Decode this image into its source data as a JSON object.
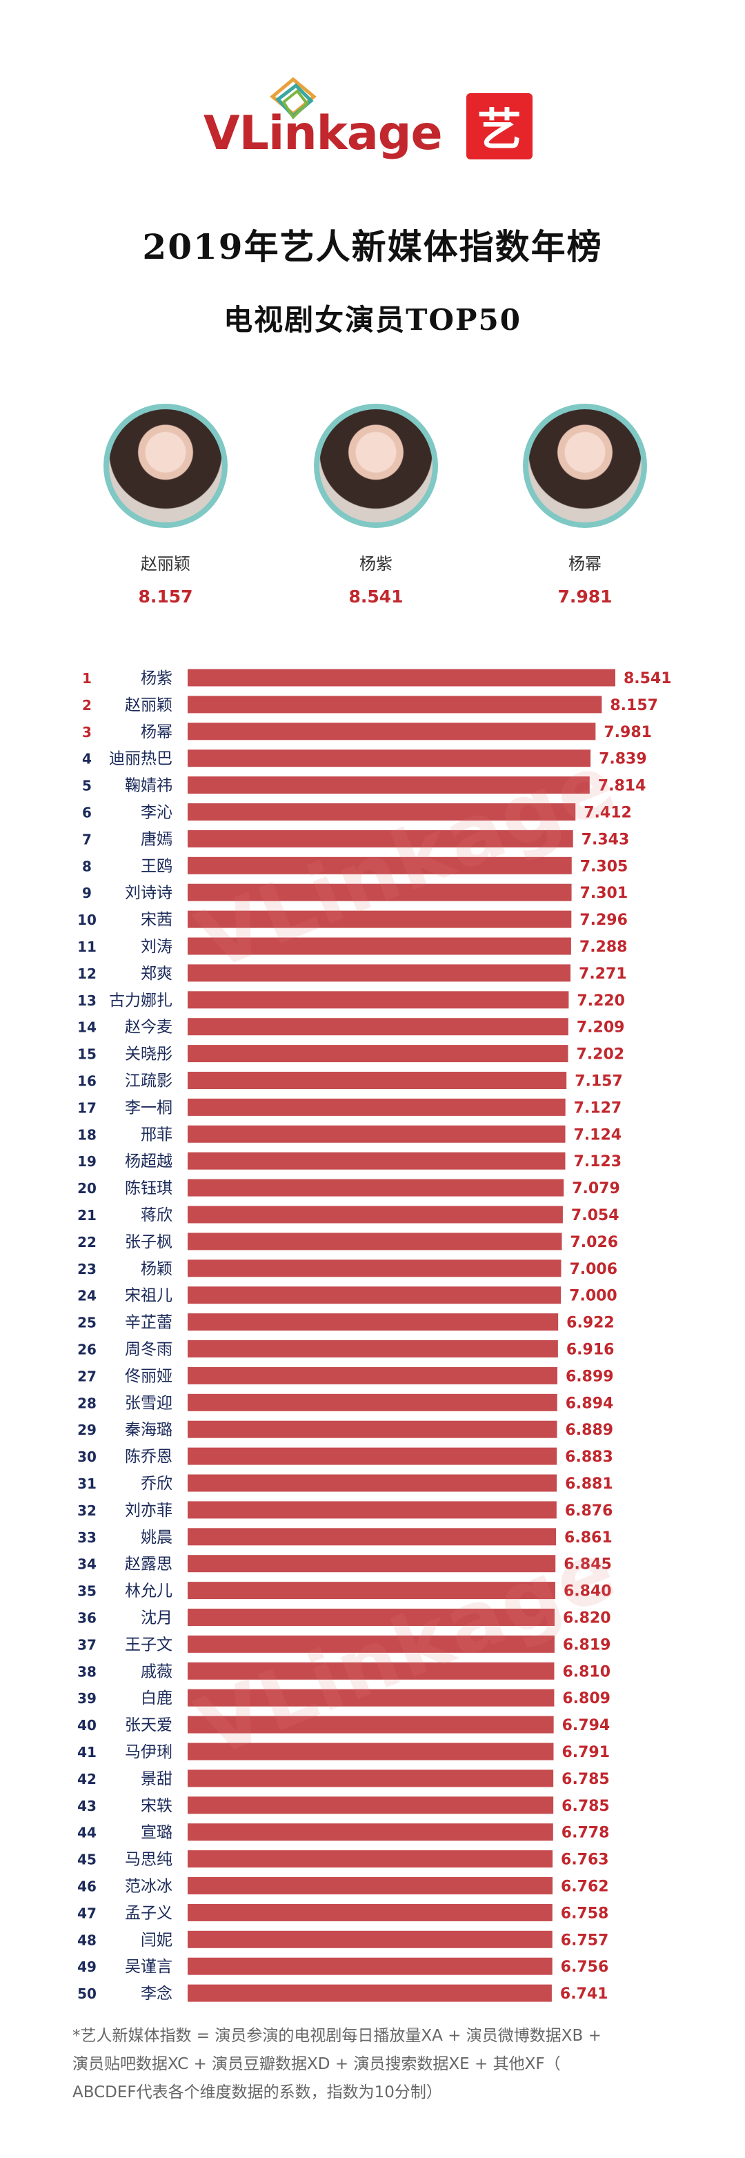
{
  "header": {
    "brand": "VLinkage",
    "badge": "艺",
    "title": "2019年艺人新媒体指数年榜",
    "subtitle": "电视剧女演员TOP50"
  },
  "podium": [
    {
      "name": "赵丽颖",
      "score": "8.157"
    },
    {
      "name": "杨紫",
      "score": "8.541"
    },
    {
      "name": "杨幂",
      "score": "7.981"
    }
  ],
  "colors": {
    "bar": "#c64b4e",
    "rank_top": "#c1272d",
    "rank": "#1b2a5a",
    "value": "#c1272d",
    "avatar_ring": "#7fc8c4"
  },
  "chart_data": {
    "type": "bar",
    "orientation": "horizontal",
    "categories": [
      "杨紫",
      "赵丽颖",
      "杨幂",
      "迪丽热巴",
      "鞠婧祎",
      "李沁",
      "唐嫣",
      "王鸥",
      "刘诗诗",
      "宋茜",
      "刘涛",
      "郑爽",
      "古力娜扎",
      "赵今麦",
      "关晓彤",
      "江疏影",
      "李一桐",
      "邢菲",
      "杨超越",
      "陈钰琪",
      "蒋欣",
      "张子枫",
      "杨颖",
      "宋祖儿",
      "辛芷蕾",
      "周冬雨",
      "佟丽娅",
      "张雪迎",
      "秦海璐",
      "陈乔恩",
      "乔欣",
      "刘亦菲",
      "姚晨",
      "赵露思",
      "林允儿",
      "沈月",
      "王子文",
      "戚薇",
      "白鹿",
      "张天爱",
      "马伊琍",
      "景甜",
      "宋轶",
      "宣璐",
      "马思纯",
      "范冰冰",
      "孟子义",
      "闫妮",
      "吴谨言",
      "李念"
    ],
    "values": [
      8.541,
      8.157,
      7.981,
      7.839,
      7.814,
      7.412,
      7.343,
      7.305,
      7.301,
      7.296,
      7.288,
      7.271,
      7.22,
      7.209,
      7.202,
      7.157,
      7.127,
      7.124,
      7.123,
      7.079,
      7.054,
      7.026,
      7.006,
      7.0,
      6.922,
      6.916,
      6.899,
      6.894,
      6.889,
      6.883,
      6.881,
      6.876,
      6.861,
      6.845,
      6.84,
      6.82,
      6.819,
      6.81,
      6.809,
      6.794,
      6.791,
      6.785,
      6.785,
      6.778,
      6.763,
      6.762,
      6.758,
      6.757,
      6.756,
      6.741
    ],
    "value_labels": [
      "8.541",
      "8.157",
      "7.981",
      "7.839",
      "7.814",
      "7.412",
      "7.343",
      "7.305",
      "7.301",
      "7.296",
      "7.288",
      "7.271",
      "7.220",
      "7.209",
      "7.202",
      "7.157",
      "7.127",
      "7.124",
      "7.123",
      "7.079",
      "7.054",
      "7.026",
      "7.006",
      "7.000",
      "6.922",
      "6.916",
      "6.899",
      "6.894",
      "6.889",
      "6.883",
      "6.881",
      "6.876",
      "6.861",
      "6.845",
      "6.840",
      "6.820",
      "6.819",
      "6.810",
      "6.809",
      "6.794",
      "6.791",
      "6.785",
      "6.785",
      "6.778",
      "6.763",
      "6.762",
      "6.758",
      "6.757",
      "6.756",
      "6.741"
    ],
    "grid": false,
    "legend": "none"
  },
  "watermark": "VLinkage",
  "footnote": [
    "*艺人新媒体指数 = 演员参演的电视剧每日播放量XA + 演员微博数据XB +",
    "演员贴吧数据XC + 演员豆瓣数据XD + 演员搜索数据XE + 其他XF（",
    "ABCDEF代表各个维度数据的系数，指数为10分制）"
  ]
}
